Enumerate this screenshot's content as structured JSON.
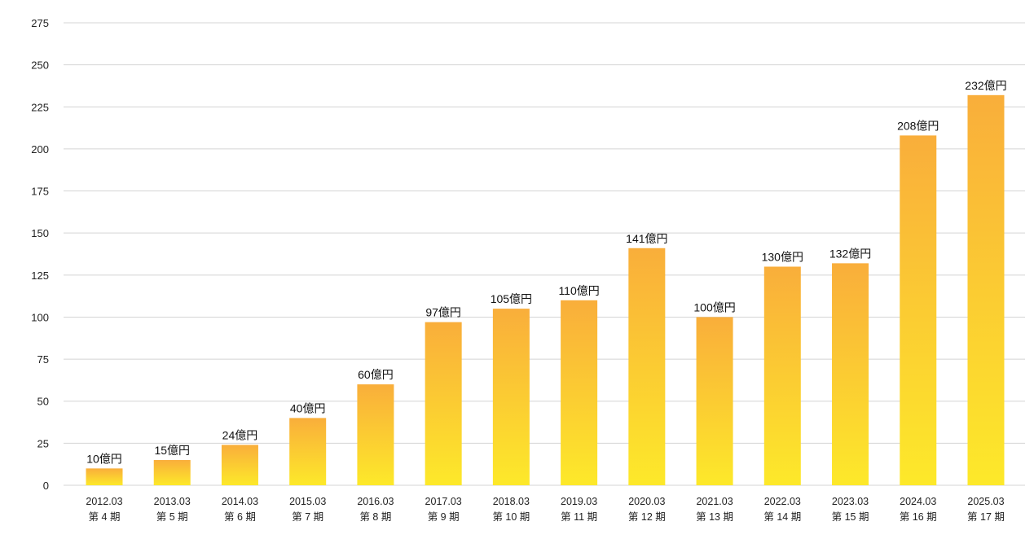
{
  "chart_data": {
    "type": "bar",
    "title": "",
    "xlabel": "",
    "ylabel": "",
    "ylim": [
      0,
      275
    ],
    "yticks": [
      0,
      25,
      50,
      75,
      100,
      125,
      150,
      175,
      200,
      225,
      250,
      275
    ],
    "grid": true,
    "legend": "none",
    "categories": [
      {
        "year": "2012.03",
        "period": "第 4 期"
      },
      {
        "year": "2013.03",
        "period": "第 5 期"
      },
      {
        "year": "2014.03",
        "period": "第 6 期"
      },
      {
        "year": "2015.03",
        "period": "第 7 期"
      },
      {
        "year": "2016.03",
        "period": "第 8 期"
      },
      {
        "year": "2017.03",
        "period": "第 9 期"
      },
      {
        "year": "2018.03",
        "period": "第 10 期"
      },
      {
        "year": "2019.03",
        "period": "第 11 期"
      },
      {
        "year": "2020.03",
        "period": "第 12 期"
      },
      {
        "year": "2021.03",
        "period": "第 13 期"
      },
      {
        "year": "2022.03",
        "period": "第 14 期"
      },
      {
        "year": "2023.03",
        "period": "第 15 期"
      },
      {
        "year": "2024.03",
        "period": "第 16 期"
      },
      {
        "year": "2025.03",
        "period": "第 17 期"
      }
    ],
    "values": [
      10,
      15,
      24,
      40,
      60,
      97,
      105,
      110,
      141,
      100,
      130,
      132,
      208,
      232
    ],
    "value_labels": [
      "10億円",
      "15億円",
      "24億円",
      "40億円",
      "60億円",
      "97億円",
      "105億円",
      "110億円",
      "141億円",
      "100億円",
      "130億円",
      "132億円",
      "208億円",
      "232億円"
    ],
    "colors": {
      "bar_top": "#f9ae3b",
      "bar_bottom": "#fde92a",
      "grid": "#d4d4d4",
      "text": "#222222"
    }
  }
}
